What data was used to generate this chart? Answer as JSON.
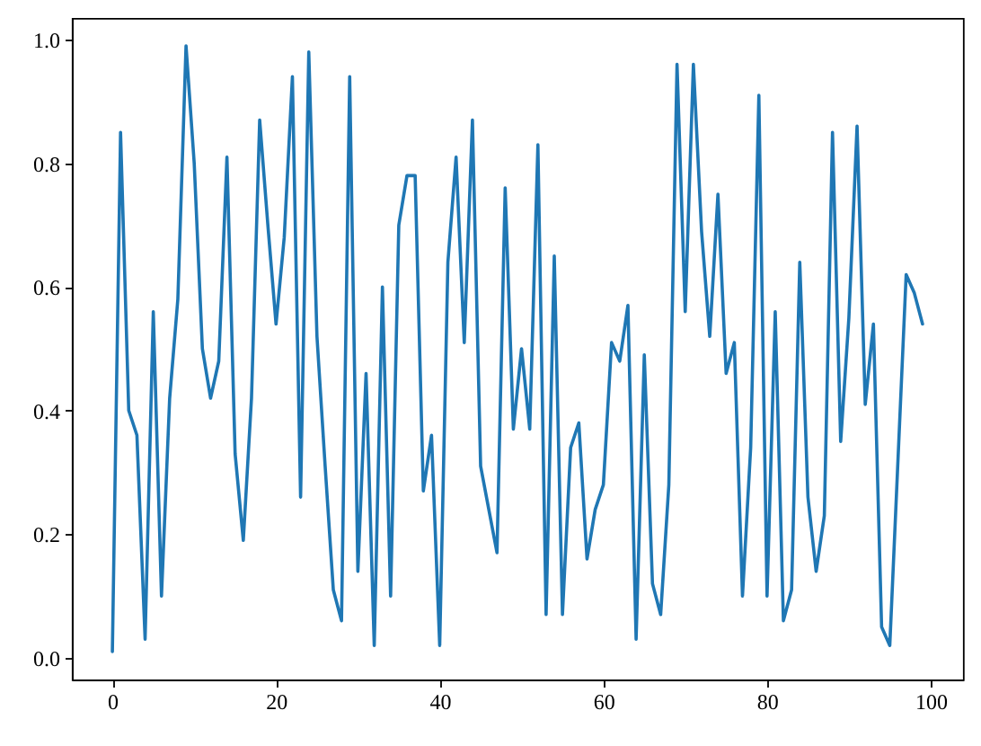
{
  "chart_data": {
    "type": "line",
    "x": [
      0,
      1,
      2,
      3,
      4,
      5,
      6,
      7,
      8,
      9,
      10,
      11,
      12,
      13,
      14,
      15,
      16,
      17,
      18,
      19,
      20,
      21,
      22,
      23,
      24,
      25,
      26,
      27,
      28,
      29,
      30,
      31,
      32,
      33,
      34,
      35,
      36,
      37,
      38,
      39,
      40,
      41,
      42,
      43,
      44,
      45,
      46,
      47,
      48,
      49,
      50,
      51,
      52,
      53,
      54,
      55,
      56,
      57,
      58,
      59,
      60,
      61,
      62,
      63,
      64,
      65,
      66,
      67,
      68,
      69,
      70,
      71,
      72,
      73,
      74,
      75,
      76,
      77,
      78,
      79,
      80,
      81,
      82,
      83,
      84,
      85,
      86,
      87,
      88,
      89,
      90,
      91,
      92,
      93,
      94,
      95,
      96,
      97,
      98,
      99
    ],
    "series": [
      {
        "color": "#1f77b4",
        "values": [
          0.01,
          0.85,
          0.4,
          0.36,
          0.03,
          0.56,
          0.1,
          0.42,
          0.58,
          0.99,
          0.8,
          0.5,
          0.42,
          0.48,
          0.81,
          0.33,
          0.19,
          0.42,
          0.87,
          0.7,
          0.54,
          0.68,
          0.94,
          0.26,
          0.98,
          0.52,
          0.31,
          0.11,
          0.06,
          0.94,
          0.14,
          0.46,
          0.02,
          0.6,
          0.1,
          0.7,
          0.78,
          0.78,
          0.27,
          0.36,
          0.02,
          0.64,
          0.81,
          0.51,
          0.87,
          0.31,
          0.24,
          0.17,
          0.76,
          0.37,
          0.5,
          0.37,
          0.83,
          0.07,
          0.65,
          0.07,
          0.34,
          0.38,
          0.16,
          0.24,
          0.28,
          0.51,
          0.48,
          0.57,
          0.03,
          0.49,
          0.12,
          0.07,
          0.28,
          0.96,
          0.56,
          0.96,
          0.69,
          0.52,
          0.75,
          0.46,
          0.51,
          0.1,
          0.34,
          0.91,
          0.1,
          0.56,
          0.06,
          0.11,
          0.64,
          0.26,
          0.14,
          0.23,
          0.85,
          0.35,
          0.55,
          0.86,
          0.41,
          0.54,
          0.05,
          0.02,
          0.32,
          0.62,
          0.59,
          0.54
        ]
      }
    ],
    "xlim": [
      -4.95,
      103.95
    ],
    "xticks": [
      0,
      20,
      40,
      60,
      80,
      100
    ],
    "ylim": [
      -0.035,
      1.035
    ],
    "yticks": [
      {
        "value": 0,
        "label": "0.0"
      },
      {
        "value": 0.2,
        "label": "0.2"
      },
      {
        "value": 0.4,
        "label": "0.4"
      },
      {
        "value": 0.6,
        "label": "0.6"
      },
      {
        "value": 0.8,
        "label": "0.8"
      },
      {
        "value": 1,
        "label": "1.0"
      }
    ],
    "grid": false
  }
}
